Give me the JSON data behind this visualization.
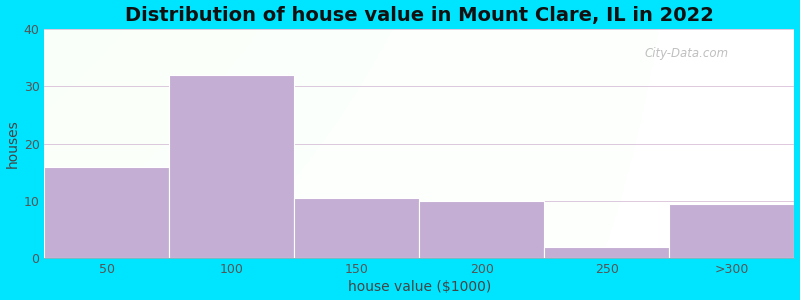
{
  "title": "Distribution of house value in Mount Clare, IL in 2022",
  "xlabel": "house value ($1000)",
  "ylabel": "houses",
  "categories": [
    "50",
    "100",
    "150",
    "200",
    "250",
    ">300"
  ],
  "values": [
    16,
    32,
    10.5,
    10,
    2,
    9.5
  ],
  "bar_color": "#c4aed4",
  "bar_edgecolor": "#ffffff",
  "ylim": [
    0,
    40
  ],
  "yticks": [
    0,
    10,
    20,
    30,
    40
  ],
  "bg_color": "#00e5ff",
  "plot_bg_color_topleft": "#d4efd4",
  "plot_bg_color_topright": "#f0f8f0",
  "plot_bg_color_bottom": "#e8f8e8",
  "grid_color": "#ddc8dd",
  "watermark": "City-Data.com",
  "title_fontsize": 14,
  "label_fontsize": 10,
  "tick_fontsize": 9,
  "bar_width": 1.0
}
